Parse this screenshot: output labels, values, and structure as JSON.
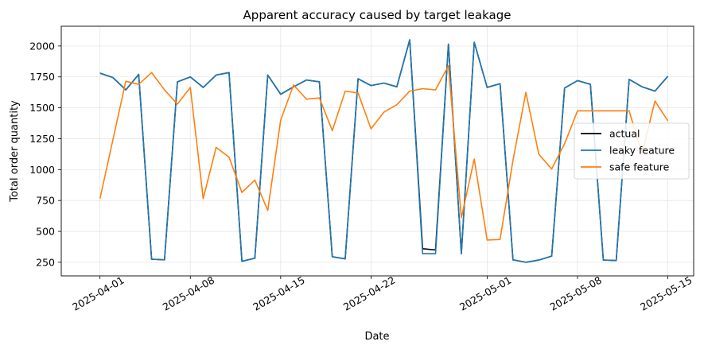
{
  "chart_data": {
    "type": "line",
    "title": "Apparent accuracy caused by target leakage",
    "xlabel": "Date",
    "ylabel": "Total order quantity",
    "x_type": "date",
    "xlim": [
      "2025-03-29",
      "2025-05-17"
    ],
    "ylim": [
      140,
      2160
    ],
    "x_ticks": [
      "2025-04-01",
      "2025-04-08",
      "2025-04-15",
      "2025-04-22",
      "2025-05-01",
      "2025-05-08",
      "2025-05-15"
    ],
    "y_ticks": [
      250,
      500,
      750,
      1000,
      1250,
      1500,
      1750,
      2000
    ],
    "grid": true,
    "legend_position": "center-right",
    "x": [
      "2025-04-01",
      "2025-04-02",
      "2025-04-03",
      "2025-04-04",
      "2025-04-05",
      "2025-04-06",
      "2025-04-07",
      "2025-04-08",
      "2025-04-09",
      "2025-04-10",
      "2025-04-11",
      "2025-04-12",
      "2025-04-13",
      "2025-04-14",
      "2025-04-15",
      "2025-04-16",
      "2025-04-17",
      "2025-04-18",
      "2025-04-19",
      "2025-04-20",
      "2025-04-21",
      "2025-04-22",
      "2025-04-23",
      "2025-04-24",
      "2025-04-25",
      "2025-04-26",
      "2025-04-27",
      "2025-04-28",
      "2025-04-29",
      "2025-04-30",
      "2025-05-01",
      "2025-05-02",
      "2025-05-03",
      "2025-05-04",
      "2025-05-05",
      "2025-05-06",
      "2025-05-07",
      "2025-05-08",
      "2025-05-09",
      "2025-05-10",
      "2025-05-11",
      "2025-05-12",
      "2025-05-13",
      "2025-05-14",
      "2025-05-15"
    ],
    "series": [
      {
        "name": "actual",
        "color": "#000000",
        "values": [
          1780,
          1745,
          1645,
          1770,
          275,
          270,
          1710,
          1750,
          1665,
          1765,
          1785,
          258,
          283,
          1765,
          1610,
          1670,
          1725,
          1710,
          295,
          278,
          1735,
          1680,
          1700,
          1670,
          2050,
          360,
          350,
          2015,
          320,
          2030,
          1665,
          1695,
          270,
          250,
          268,
          300,
          1660,
          1720,
          1690,
          268,
          264,
          1730,
          1670,
          1635,
          1755
        ]
      },
      {
        "name": "leaky feature",
        "color": "#1f77b4",
        "values": [
          1780,
          1745,
          1645,
          1770,
          275,
          270,
          1710,
          1750,
          1665,
          1765,
          1785,
          258,
          283,
          1765,
          1610,
          1670,
          1725,
          1710,
          295,
          278,
          1735,
          1680,
          1700,
          1670,
          2050,
          320,
          320,
          2015,
          320,
          2030,
          1665,
          1695,
          270,
          250,
          268,
          300,
          1660,
          1720,
          1690,
          268,
          264,
          1730,
          1670,
          1635,
          1755
        ]
      },
      {
        "name": "safe feature",
        "color": "#ff7f0e",
        "values": [
          765,
          1240,
          1715,
          1690,
          1785,
          1645,
          1530,
          1665,
          765,
          1180,
          1100,
          815,
          915,
          670,
          1400,
          1685,
          1570,
          1580,
          1315,
          1635,
          1620,
          1330,
          1465,
          1525,
          1635,
          1655,
          1645,
          1840,
          610,
          1085,
          430,
          435,
          1075,
          1625,
          1125,
          1005,
          1210,
          1475,
          1475,
          1475,
          1475,
          1475,
          1130,
          1555,
          1395
        ]
      }
    ]
  }
}
